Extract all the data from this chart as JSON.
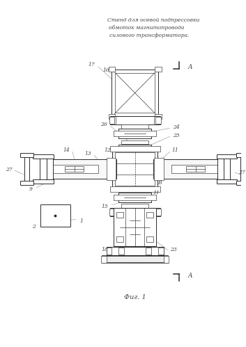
{
  "title_line1": "Стенд для осевой подпрессовки",
  "title_line2": "обмоток магнитопровода",
  "title_line3": "силового трансформатора.",
  "fig_label": "Фиг. 1",
  "bg_color": "#ffffff",
  "line_color": "#2a2a2a",
  "ann_color": "#444444",
  "ann_line_color": "#999999"
}
